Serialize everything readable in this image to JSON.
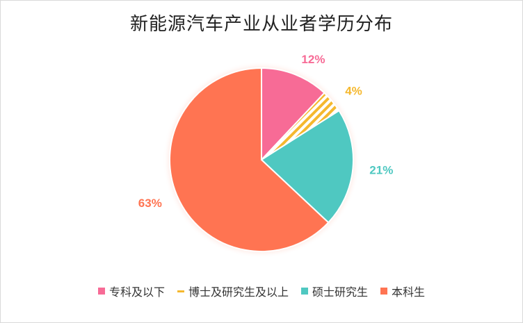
{
  "chart_data": {
    "type": "pie",
    "title": "新能源汽车产业从业者学历分布",
    "slices": [
      {
        "label": "专科及以下",
        "value": 12,
        "display": "12%",
        "color": "#f76b96",
        "pattern": "solid"
      },
      {
        "label": "博士及研究生及以上",
        "value": 4,
        "display": "4%",
        "color": "#f5b82e",
        "pattern": "hatch"
      },
      {
        "label": "硕士研究生",
        "value": 21,
        "display": "21%",
        "color": "#4fc8c1",
        "pattern": "solid"
      },
      {
        "label": "本科生",
        "value": 63,
        "display": "63%",
        "color": "#ff7452",
        "pattern": "solid"
      }
    ],
    "legend_position": "bottom"
  }
}
